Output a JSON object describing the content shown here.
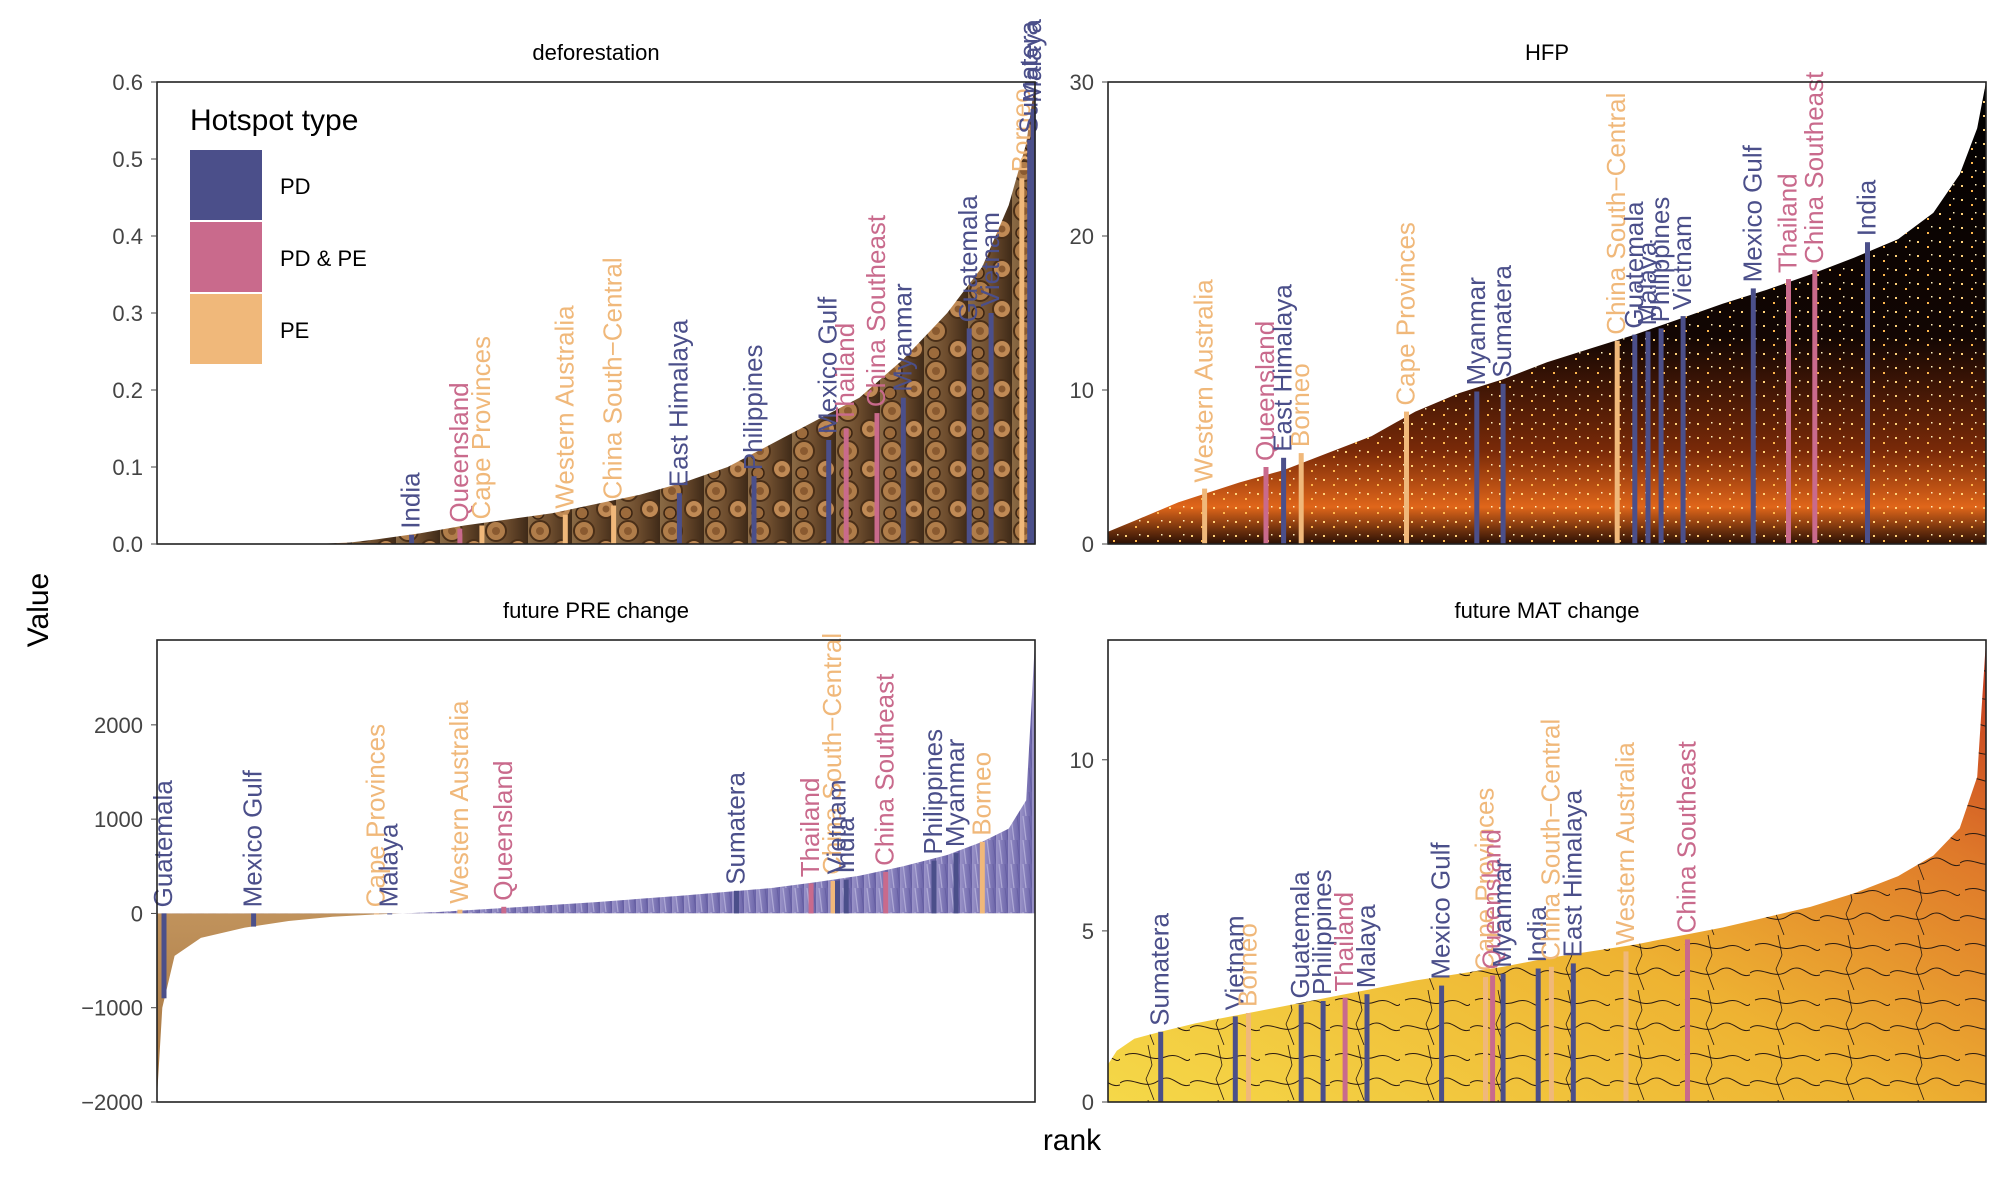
{
  "figure": {
    "y_label": "Value",
    "x_label": "rank",
    "legend": {
      "title": "Hotspot type",
      "entries": [
        {
          "key": "PD",
          "label": "PD",
          "color": "#4b4f8a"
        },
        {
          "key": "PDPE",
          "label": "PD & PE",
          "color": "#c96a8c"
        },
        {
          "key": "PE",
          "label": "PE",
          "color": "#f0b87a"
        }
      ]
    }
  },
  "chart_data": [
    {
      "type": "area",
      "title": "deforestation",
      "x_axis": "rank (percentile, 0-100)",
      "ylim": [
        0,
        0.6
      ],
      "yticks": [
        0.0,
        0.1,
        0.2,
        0.3,
        0.4,
        0.5,
        0.6
      ],
      "ytick_labels": [
        "0.0",
        "0.1",
        "0.2",
        "0.3",
        "0.4",
        "0.5",
        "0.6"
      ],
      "fill_style": "wood-logs",
      "curve": [
        [
          0,
          0
        ],
        [
          18,
          0
        ],
        [
          22,
          0.002
        ],
        [
          25,
          0.006
        ],
        [
          30,
          0.014
        ],
        [
          35,
          0.024
        ],
        [
          40,
          0.032
        ],
        [
          45,
          0.04
        ],
        [
          50,
          0.052
        ],
        [
          55,
          0.064
        ],
        [
          60,
          0.08
        ],
        [
          65,
          0.1
        ],
        [
          70,
          0.13
        ],
        [
          75,
          0.16
        ],
        [
          80,
          0.19
        ],
        [
          85,
          0.24
        ],
        [
          90,
          0.3
        ],
        [
          94,
          0.36
        ],
        [
          97,
          0.44
        ],
        [
          99,
          0.52
        ],
        [
          100,
          0.6
        ]
      ],
      "hotspots": [
        {
          "name": "India",
          "type": "PD",
          "x": 29,
          "y": 0.012
        },
        {
          "name": "Queensland",
          "type": "PDPE",
          "x": 34.5,
          "y": 0.02
        },
        {
          "name": "Cape Provinces",
          "type": "PE",
          "x": 37,
          "y": 0.024
        },
        {
          "name": "Western Australia",
          "type": "PE",
          "x": 46.5,
          "y": 0.038
        },
        {
          "name": "China South−Central",
          "type": "PE",
          "x": 52,
          "y": 0.05
        },
        {
          "name": "East Himalaya",
          "type": "PD",
          "x": 59.5,
          "y": 0.066
        },
        {
          "name": "Philippines",
          "type": "PD",
          "x": 68,
          "y": 0.088
        },
        {
          "name": "Mexico Gulf",
          "type": "PD",
          "x": 76.5,
          "y": 0.135
        },
        {
          "name": "Thailand",
          "type": "PDPE",
          "x": 78.5,
          "y": 0.15
        },
        {
          "name": "China Southeast",
          "type": "PDPE",
          "x": 82,
          "y": 0.17
        },
        {
          "name": "Myanmar",
          "type": "PD",
          "x": 85,
          "y": 0.19
        },
        {
          "name": "Guatemala",
          "type": "PD",
          "x": 92.5,
          "y": 0.28
        },
        {
          "name": "Vietnam",
          "type": "PD",
          "x": 95,
          "y": 0.3
        },
        {
          "name": "Borneo",
          "type": "PE",
          "x": 98.5,
          "y": 0.475
        },
        {
          "name": "Sumatera",
          "type": "PD",
          "x": 99.4,
          "y": 0.525
        },
        {
          "name": "Malaya",
          "type": "PD",
          "x": 99.8,
          "y": 0.565
        }
      ]
    },
    {
      "type": "area",
      "title": "HFP",
      "x_axis": "rank (percentile, 0-100)",
      "ylim": [
        0,
        30
      ],
      "yticks": [
        0,
        10,
        20,
        30
      ],
      "ytick_labels": [
        "0",
        "10",
        "20",
        "30"
      ],
      "fill_style": "city-night",
      "curve": [
        [
          0,
          0.8
        ],
        [
          3,
          1.5
        ],
        [
          8,
          2.7
        ],
        [
          15,
          4
        ],
        [
          20,
          4.8
        ],
        [
          25,
          5.9
        ],
        [
          30,
          7
        ],
        [
          35,
          8.6
        ],
        [
          40,
          9.8
        ],
        [
          45,
          10.7
        ],
        [
          50,
          11.8
        ],
        [
          55,
          12.7
        ],
        [
          60,
          13.6
        ],
        [
          65,
          14.6
        ],
        [
          70,
          15.6
        ],
        [
          75,
          16.5
        ],
        [
          80,
          17.5
        ],
        [
          85,
          18.6
        ],
        [
          90,
          19.8
        ],
        [
          94,
          21.5
        ],
        [
          97,
          24
        ],
        [
          99,
          27
        ],
        [
          100,
          30
        ]
      ],
      "hotspots": [
        {
          "name": "Western Australia",
          "type": "PE",
          "x": 11,
          "y": 3.6
        },
        {
          "name": "Queensland",
          "type": "PDPE",
          "x": 18,
          "y": 5
        },
        {
          "name": "East Himalaya",
          "type": "PD",
          "x": 20,
          "y": 5.6
        },
        {
          "name": "Borneo",
          "type": "PE",
          "x": 22,
          "y": 5.9
        },
        {
          "name": "Cape Provinces",
          "type": "PE",
          "x": 34,
          "y": 8.6
        },
        {
          "name": "Myanmar",
          "type": "PD",
          "x": 42,
          "y": 9.9
        },
        {
          "name": "Sumatera",
          "type": "PD",
          "x": 45,
          "y": 10.4
        },
        {
          "name": "China South−Central",
          "type": "PE",
          "x": 58,
          "y": 13.2
        },
        {
          "name": "Guatemala",
          "type": "PD",
          "x": 60,
          "y": 13.6
        },
        {
          "name": "Malaya",
          "type": "PD",
          "x": 61.5,
          "y": 13.8
        },
        {
          "name": "Philippines",
          "type": "PD",
          "x": 63,
          "y": 14
        },
        {
          "name": "Vietnam",
          "type": "PD",
          "x": 65.5,
          "y": 14.8
        },
        {
          "name": "Mexico Gulf",
          "type": "PD",
          "x": 73.5,
          "y": 16.6
        },
        {
          "name": "Thailand",
          "type": "PDPE",
          "x": 77.5,
          "y": 17.2
        },
        {
          "name": "China Southeast",
          "type": "PDPE",
          "x": 80.5,
          "y": 17.8
        },
        {
          "name": "India",
          "type": "PD",
          "x": 86.5,
          "y": 19.6
        }
      ]
    },
    {
      "type": "area",
      "title": "future PRE change",
      "x_axis": "rank (percentile, 0-100)",
      "ylim": [
        -2000,
        2900
      ],
      "yticks": [
        -2000,
        -1000,
        0,
        1000,
        2000
      ],
      "ytick_labels": [
        "−2000",
        "−1000",
        "0",
        "1000",
        "2000"
      ],
      "fill_style": "desert-to-rain",
      "curve": [
        [
          0,
          -1950
        ],
        [
          0.6,
          -1000
        ],
        [
          2,
          -450
        ],
        [
          5,
          -260
        ],
        [
          10,
          -150
        ],
        [
          15,
          -80
        ],
        [
          20,
          -35
        ],
        [
          25,
          -10
        ],
        [
          28,
          0
        ],
        [
          32,
          15
        ],
        [
          40,
          60
        ],
        [
          50,
          120
        ],
        [
          60,
          190
        ],
        [
          70,
          270
        ],
        [
          75,
          330
        ],
        [
          80,
          400
        ],
        [
          85,
          500
        ],
        [
          90,
          620
        ],
        [
          94,
          760
        ],
        [
          97,
          900
        ],
        [
          99,
          1200
        ],
        [
          100,
          2900
        ]
      ],
      "hotspots": [
        {
          "name": "Guatemala",
          "type": "PD",
          "x": 0.8,
          "y": -900
        },
        {
          "name": "Mexico Gulf",
          "type": "PD",
          "x": 11,
          "y": -140
        },
        {
          "name": "Cape Provinces",
          "type": "PE",
          "x": 25,
          "y": -12
        },
        {
          "name": "Malaya",
          "type": "PD",
          "x": 26.5,
          "y": -5
        },
        {
          "name": "Western Australia",
          "type": "PE",
          "x": 34.5,
          "y": 40
        },
        {
          "name": "Queensland",
          "type": "PDPE",
          "x": 39.5,
          "y": 70
        },
        {
          "name": "Sumatera",
          "type": "PD",
          "x": 66,
          "y": 240
        },
        {
          "name": "Thailand",
          "type": "PDPE",
          "x": 74.5,
          "y": 320
        },
        {
          "name": "China South−Central",
          "type": "PE",
          "x": 77,
          "y": 345
        },
        {
          "name": "Vietnam",
          "type": "PD",
          "x": 77.5,
          "y": 350
        },
        {
          "name": "India",
          "type": "PD",
          "x": 78.5,
          "y": 360
        },
        {
          "name": "China Southeast",
          "type": "PDPE",
          "x": 83,
          "y": 440
        },
        {
          "name": "Philippines",
          "type": "PD",
          "x": 88.5,
          "y": 560
        },
        {
          "name": "Myanmar",
          "type": "PD",
          "x": 91,
          "y": 640
        },
        {
          "name": "Borneo",
          "type": "PE",
          "x": 94,
          "y": 760
        }
      ]
    },
    {
      "type": "area",
      "title": "future MAT change",
      "x_axis": "rank (percentile, 0-100)",
      "ylim": [
        0,
        13.5
      ],
      "yticks": [
        0,
        5,
        10
      ],
      "ytick_labels": [
        "0",
        "5",
        "10"
      ],
      "fill_style": "heat-map",
      "curve": [
        [
          0,
          1.1
        ],
        [
          1,
          1.5
        ],
        [
          3,
          1.85
        ],
        [
          6,
          2.05
        ],
        [
          10,
          2.3
        ],
        [
          15,
          2.55
        ],
        [
          20,
          2.8
        ],
        [
          25,
          3.05
        ],
        [
          30,
          3.3
        ],
        [
          35,
          3.55
        ],
        [
          40,
          3.75
        ],
        [
          45,
          3.95
        ],
        [
          50,
          4.2
        ],
        [
          55,
          4.4
        ],
        [
          60,
          4.6
        ],
        [
          65,
          4.85
        ],
        [
          70,
          5.1
        ],
        [
          75,
          5.4
        ],
        [
          80,
          5.7
        ],
        [
          85,
          6.1
        ],
        [
          90,
          6.6
        ],
        [
          94,
          7.2
        ],
        [
          97,
          8
        ],
        [
          99,
          9.5
        ],
        [
          100,
          13.5
        ]
      ],
      "hotspots": [
        {
          "name": "Sumatera",
          "type": "PD",
          "x": 6,
          "y": 2.05
        },
        {
          "name": "Vietnam",
          "type": "PD",
          "x": 14.5,
          "y": 2.5
        },
        {
          "name": "Borneo",
          "type": "PE",
          "x": 16,
          "y": 2.6
        },
        {
          "name": "Guatemala",
          "type": "PD",
          "x": 22,
          "y": 2.85
        },
        {
          "name": "Philippines",
          "type": "PD",
          "x": 24.5,
          "y": 2.95
        },
        {
          "name": "Thailand",
          "type": "PDPE",
          "x": 27,
          "y": 3.05
        },
        {
          "name": "Malaya",
          "type": "PD",
          "x": 29.5,
          "y": 3.15
        },
        {
          "name": "Mexico Gulf",
          "type": "PD",
          "x": 38,
          "y": 3.4
        },
        {
          "name": "Cape Provinces",
          "type": "PE",
          "x": 43,
          "y": 3.65
        },
        {
          "name": "Queensland",
          "type": "PDPE",
          "x": 43.8,
          "y": 3.7
        },
        {
          "name": "Myanmar",
          "type": "PD",
          "x": 45,
          "y": 3.75
        },
        {
          "name": "India",
          "type": "PD",
          "x": 49,
          "y": 3.9
        },
        {
          "name": "China South−Central",
          "type": "PE",
          "x": 50.5,
          "y": 3.95
        },
        {
          "name": "East Himalaya",
          "type": "PD",
          "x": 53,
          "y": 4.05
        },
        {
          "name": "Western Australia",
          "type": "PE",
          "x": 59,
          "y": 4.4
        },
        {
          "name": "China Southeast",
          "type": "PDPE",
          "x": 66,
          "y": 4.75
        }
      ]
    }
  ]
}
